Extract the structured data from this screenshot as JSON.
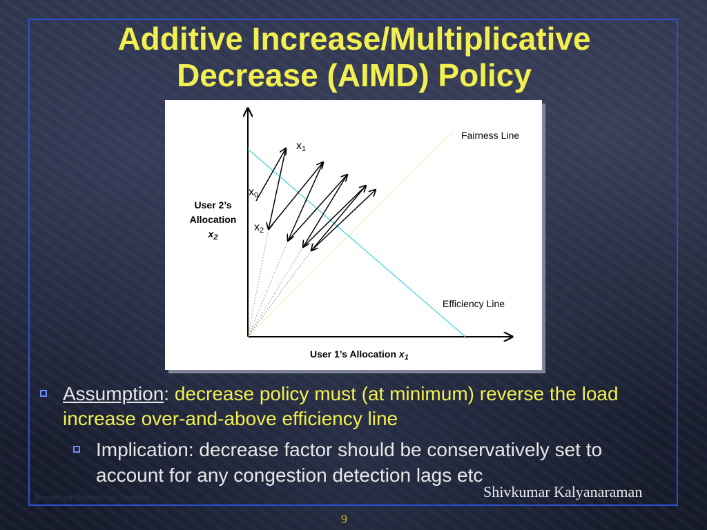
{
  "slide": {
    "title_line1": "Additive Increase/Multiplicative",
    "title_line2": "Decrease (AIMD) Policy"
  },
  "figure": {
    "fairness_label": "Fairness Line",
    "efficiency_label": "Efficiency Line",
    "point_x1": "x",
    "point_x1_sub": "1",
    "point_x0": "x",
    "point_x0_sub": "0",
    "point_x2": "x",
    "point_x2_sub": "2",
    "y_axis_line1": "User 2’s",
    "y_axis_line2": "Allocation",
    "y_axis_var": "x",
    "y_axis_var_sub": "2",
    "x_axis_text": "User 1’s Allocation",
    "x_axis_var": "x",
    "x_axis_var_sub": "1"
  },
  "bullets": {
    "b1_lead": "Assumption",
    "b1_colon": ":",
    "b1_text": " decrease policy must (at minimum) reverse the load increase over-and-above efficiency line",
    "b2_text": "Implication: decrease factor should be conservatively set to account for any congestion detection lags etc"
  },
  "footer": {
    "institution": "Rensselaer Polytechnic Institute",
    "author": "Shivkumar Kalyanaraman",
    "page": "9"
  },
  "colors": {
    "title": "#f2f050",
    "frame": "#2b4fd0",
    "efficiency_line": "#40d8e0",
    "fairness_line": "#f0f0c0",
    "bullet_lead": "#e8e8e8",
    "bullet_highlight": "#f2f050"
  }
}
